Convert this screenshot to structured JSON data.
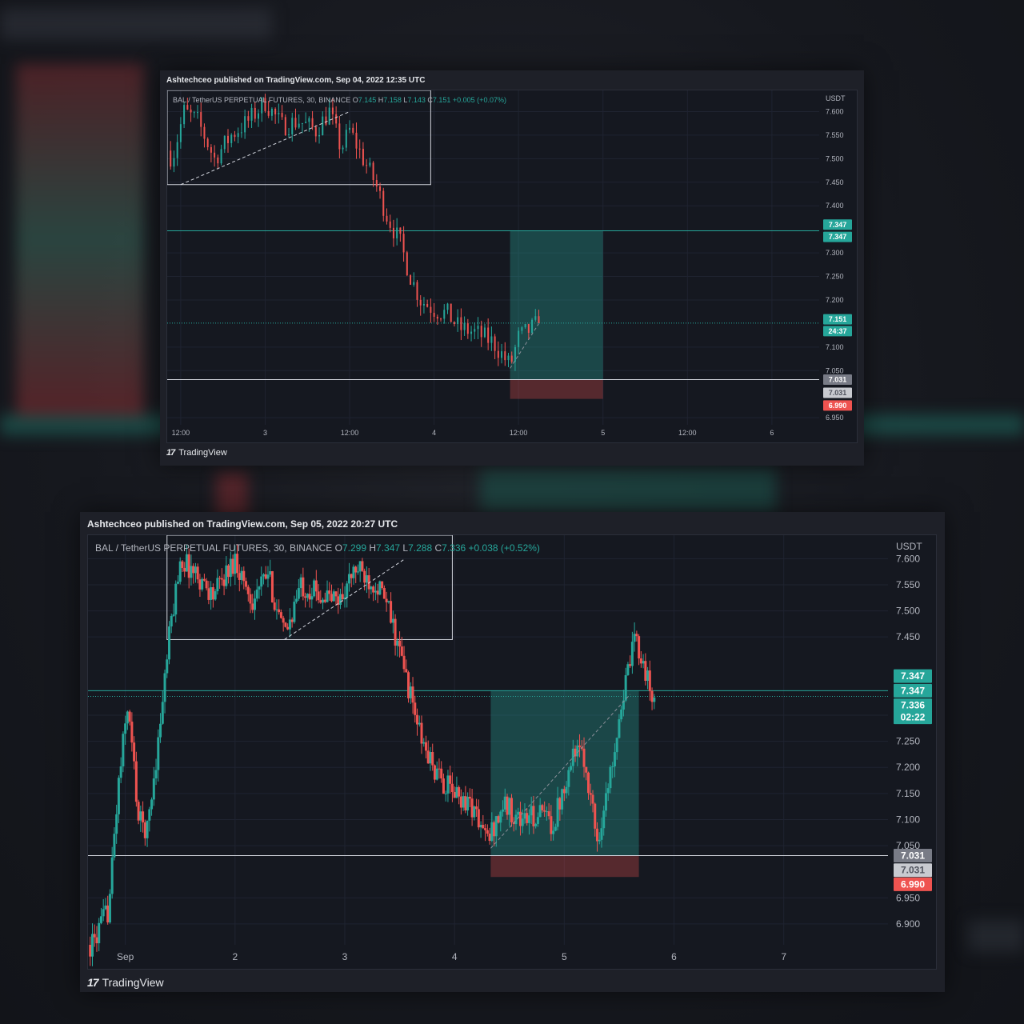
{
  "colors": {
    "up": "#26a69a",
    "down": "#ef5350",
    "bg": "#151820",
    "grid": "#1f2330",
    "axis_text": "#b2b5be",
    "legend_text": "#b2b5be",
    "value_text": "#26a69a"
  },
  "charts": [
    {
      "published": "Ashtechceo published on TradingView.com, Sep 04, 2022 12:35 UTC",
      "legend": {
        "symbol": "BAL / TetherUS PERPETUAL FUTURES, 30, BINANCE",
        "o_label": "O",
        "o": "7.145",
        "h_label": "H",
        "h": "7.158",
        "l_label": "L",
        "l": "7.143",
        "c_label": "C",
        "c": "7.151",
        "change": "+0.005 (+0.07%)"
      },
      "currency": "USDT",
      "brand": "TradingView"
    },
    {
      "published": "Ashtechceo published on TradingView.com, Sep 05, 2022 20:27 UTC",
      "legend": {
        "symbol": "BAL / TetherUS PERPETUAL FUTURES, 30, BINANCE",
        "o_label": "O",
        "o": "7.299",
        "h_label": "H",
        "h": "7.347",
        "l_label": "L",
        "l": "7.288",
        "c_label": "C",
        "c": "7.336",
        "change": "+0.038 (+0.52%)"
      },
      "currency": "USDT",
      "brand": "TradingView"
    }
  ],
  "chart_data": [
    {
      "type": "candlestick",
      "title": "BAL / TetherUS PERPETUAL FUTURES, 30, BINANCE",
      "y_ticks": [
        7.6,
        7.55,
        7.5,
        7.45,
        7.4,
        7.3,
        7.25,
        7.2,
        7.1,
        7.05,
        6.95
      ],
      "ylim": [
        6.935,
        7.645
      ],
      "x_ticks": [
        "12:00",
        "3",
        "12:00",
        "4",
        "12:00",
        "5",
        "12:00",
        "6"
      ],
      "x_tick_positions": [
        2.5,
        3,
        3.5,
        4,
        4.5,
        5,
        5.5,
        6
      ],
      "xlim": [
        2.42,
        6.28
      ],
      "price_path": [
        [
          2.38,
          7.54
        ],
        [
          2.45,
          7.5
        ],
        [
          2.52,
          7.6
        ],
        [
          2.6,
          7.58
        ],
        [
          2.7,
          7.5
        ],
        [
          2.8,
          7.55
        ],
        [
          2.9,
          7.58
        ],
        [
          3.0,
          7.62
        ],
        [
          3.1,
          7.57
        ],
        [
          3.2,
          7.58
        ],
        [
          3.3,
          7.56
        ],
        [
          3.38,
          7.6
        ],
        [
          3.45,
          7.52
        ],
        [
          3.5,
          7.56
        ],
        [
          3.58,
          7.5
        ],
        [
          3.65,
          7.45
        ],
        [
          3.72,
          7.38
        ],
        [
          3.8,
          7.32
        ],
        [
          3.86,
          7.25
        ],
        [
          3.92,
          7.2
        ],
        [
          4.0,
          7.18
        ],
        [
          4.08,
          7.17
        ],
        [
          4.15,
          7.14
        ],
        [
          4.25,
          7.13
        ],
        [
          4.35,
          7.11
        ],
        [
          4.45,
          7.06
        ],
        [
          4.5,
          7.12
        ],
        [
          4.58,
          7.14
        ],
        [
          4.62,
          7.151
        ]
      ],
      "levels": [
        {
          "price": 7.347,
          "label": "7.347",
          "color": "#26a69a",
          "type": "target"
        },
        {
          "price": 7.031,
          "label": "7.031",
          "color": "#d1d4dc",
          "type": "support"
        },
        {
          "price": 7.151,
          "label": "7.151",
          "color": "#26a69a",
          "type": "last"
        }
      ],
      "position": {
        "x_start": 4.45,
        "x_end": 5.0,
        "entry": 7.031,
        "target": 7.347,
        "stop": 6.99
      },
      "range_box": {
        "x_start": 2.42,
        "x_end": 3.98,
        "top": 7.645,
        "bottom": 7.445
      },
      "trend_lines": [
        [
          [
            2.5,
            7.445
          ],
          [
            3.5,
            7.6
          ]
        ],
        [
          [
            4.45,
            7.055
          ],
          [
            4.62,
            7.15
          ]
        ]
      ],
      "axis_labels": [
        {
          "text": "7.347",
          "bg": "#26a69a",
          "fg": "#ffffff",
          "at": 7.36
        },
        {
          "text": "7.347",
          "bg": "#26a69a",
          "fg": "#ffffff",
          "at": 7.334
        },
        {
          "text": "7.151",
          "bg": "#26a69a",
          "fg": "#ffffff",
          "at": 7.159
        },
        {
          "text": "24:37",
          "bg": "#26a69a",
          "fg": "#ffffff",
          "at": 7.134
        },
        {
          "text": "7.031",
          "bg": "#787b86",
          "fg": "#ffffff",
          "at": 7.031
        },
        {
          "text": "7.031",
          "bg": "#c8cad0",
          "fg": "#50535e",
          "at": 7.003
        },
        {
          "text": "6.990",
          "bg": "#ef5350",
          "fg": "#ffffff",
          "at": 6.976
        }
      ]
    },
    {
      "type": "candlestick",
      "title": "BAL / TetherUS PERPETUAL FUTURES, 30, BINANCE",
      "y_ticks": [
        7.6,
        7.55,
        7.5,
        7.45,
        7.3,
        7.25,
        7.2,
        7.15,
        7.1,
        7.05,
        6.95,
        6.9
      ],
      "ylim": [
        6.86,
        7.645
      ],
      "x_ticks": [
        "Sep",
        "2",
        "3",
        "4",
        "5",
        "6",
        "7"
      ],
      "x_tick_positions": [
        1,
        2,
        3,
        4,
        5,
        6,
        7
      ],
      "xlim": [
        0.66,
        7.95
      ],
      "price_path": [
        [
          0.7,
          6.86
        ],
        [
          0.85,
          6.93
        ],
        [
          0.93,
          7.15
        ],
        [
          1.02,
          7.32
        ],
        [
          1.08,
          7.2
        ],
        [
          1.12,
          7.1
        ],
        [
          1.2,
          7.08
        ],
        [
          1.3,
          7.25
        ],
        [
          1.4,
          7.45
        ],
        [
          1.5,
          7.6
        ],
        [
          1.65,
          7.57
        ],
        [
          1.8,
          7.53
        ],
        [
          2.0,
          7.6
        ],
        [
          2.15,
          7.52
        ],
        [
          2.3,
          7.57
        ],
        [
          2.45,
          7.45
        ],
        [
          2.6,
          7.55
        ],
        [
          2.8,
          7.53
        ],
        [
          2.95,
          7.52
        ],
        [
          3.1,
          7.58
        ],
        [
          3.3,
          7.55
        ],
        [
          3.4,
          7.5
        ],
        [
          3.55,
          7.38
        ],
        [
          3.7,
          7.25
        ],
        [
          3.85,
          7.18
        ],
        [
          4.0,
          7.15
        ],
        [
          4.15,
          7.13
        ],
        [
          4.3,
          7.06
        ],
        [
          4.45,
          7.13
        ],
        [
          4.6,
          7.1
        ],
        [
          4.8,
          7.11
        ],
        [
          4.9,
          7.09
        ],
        [
          5.0,
          7.17
        ],
        [
          5.1,
          7.24
        ],
        [
          5.2,
          7.2
        ],
        [
          5.3,
          7.06
        ],
        [
          5.4,
          7.16
        ],
        [
          5.5,
          7.3
        ],
        [
          5.58,
          7.38
        ],
        [
          5.65,
          7.45
        ],
        [
          5.72,
          7.4
        ],
        [
          5.8,
          7.33
        ],
        [
          5.83,
          7.336
        ]
      ],
      "levels": [
        {
          "price": 7.347,
          "label": "7.347",
          "color": "#26a69a",
          "type": "target"
        },
        {
          "price": 7.031,
          "label": "7.031",
          "color": "#d1d4dc",
          "type": "support"
        },
        {
          "price": 7.336,
          "label": "7.336",
          "color": "#26a69a",
          "type": "last"
        }
      ],
      "position": {
        "x_start": 4.33,
        "x_end": 5.68,
        "entry": 7.031,
        "target": 7.347,
        "stop": 6.99
      },
      "range_box": {
        "x_start": 1.38,
        "x_end": 3.98,
        "top": 7.645,
        "bottom": 7.445
      },
      "trend_lines": [
        [
          [
            2.45,
            7.445
          ],
          [
            3.55,
            7.6
          ]
        ],
        [
          [
            4.33,
            7.045
          ],
          [
            5.6,
            7.34
          ]
        ]
      ],
      "axis_labels": [
        {
          "text": "7.347",
          "bg": "#26a69a",
          "fg": "#ffffff",
          "at": 7.375
        },
        {
          "text": "7.347",
          "bg": "#26a69a",
          "fg": "#ffffff",
          "at": 7.347
        },
        {
          "text": "7.336",
          "bg": "#26a69a",
          "fg": "#ffffff",
          "at": 7.319
        },
        {
          "text": "02:22",
          "bg": "#26a69a",
          "fg": "#ffffff",
          "at": 7.296
        },
        {
          "text": "7.031",
          "bg": "#787b86",
          "fg": "#ffffff",
          "at": 7.031
        },
        {
          "text": "7.031",
          "bg": "#c8cad0",
          "fg": "#50535e",
          "at": 7.003
        },
        {
          "text": "6.990",
          "bg": "#ef5350",
          "fg": "#ffffff",
          "at": 6.976
        }
      ]
    }
  ]
}
